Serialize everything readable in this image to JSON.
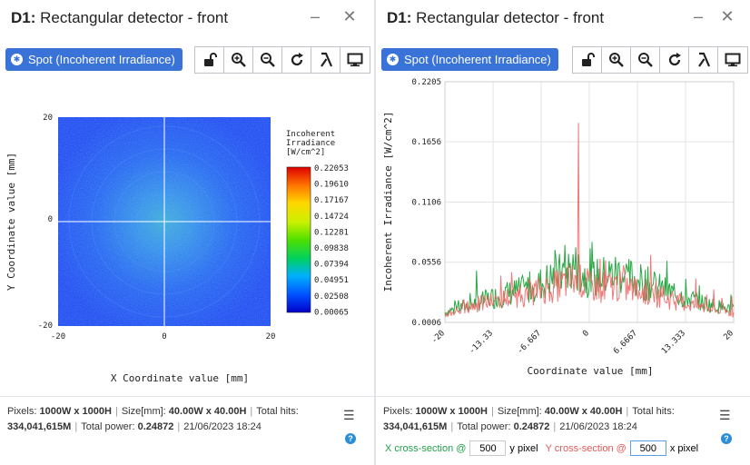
{
  "left": {
    "title_prefix": "D1:",
    "title": "Rectangular detector - front",
    "spot_button": "Spot (Incoherent Irradiance)",
    "colorbar": {
      "title_lines": [
        "Incoherent",
        "Irradiance",
        "[W/cm^2]"
      ],
      "ticks": [
        "0.22053",
        "0.19610",
        "0.17167",
        "0.14724",
        "0.12281",
        "0.09838",
        "0.07394",
        "0.04951",
        "0.02508",
        "0.00065"
      ]
    },
    "x_ticks": [
      "-20",
      "0",
      "20"
    ],
    "y_ticks": [
      "20",
      "0",
      "-20"
    ],
    "xlabel": "X Coordinate value [mm]",
    "ylabel": "Y Coordinate value [mm]"
  },
  "right": {
    "title_prefix": "D1:",
    "title": "Rectangular detector - front",
    "spot_button": "Spot (Incoherent Irradiance)",
    "cross_section": {
      "x_label": "X cross-section @",
      "x_value": "500",
      "x_unit": "y pixel",
      "y_label": "Y cross-section @",
      "y_value": "500",
      "y_unit": "x pixel"
    }
  },
  "footer": {
    "pixels_label": "Pixels:",
    "pixels_value": "1000W x 1000H",
    "size_label": "Size[mm]:",
    "size_value": "40.00W x 40.00H",
    "hits_label": "Total hits:",
    "hits_value": "334,041,615M",
    "power_label": "Total power:",
    "power_value": "0.24872",
    "timestamp": "21/06/2023 18:24"
  },
  "icons": {
    "spot": "asterisk-icon",
    "toolbar": [
      "unlock-icon",
      "zoom-in-icon",
      "zoom-out-icon",
      "refresh-icon",
      "lambda-icon",
      "monitor-icon"
    ],
    "close": "close-icon",
    "minimize": "minimize-icon",
    "menu": "hamburger-menu-icon",
    "help": "help-icon"
  },
  "chart_data": [
    {
      "type": "heatmap",
      "xlabel": "X Coordinate value [mm]",
      "ylabel": "Y Coordinate value [mm]",
      "xlim": [
        -20,
        20
      ],
      "ylim": [
        -20,
        20
      ],
      "x_ticks": [
        -20,
        0,
        20
      ],
      "y_ticks": [
        -20,
        0,
        20
      ],
      "colorbar_label": "Incoherent Irradiance [W/cm^2]",
      "colorbar_range": [
        0.00065,
        0.22053
      ]
    },
    {
      "type": "line",
      "xlabel": "Coordinate value [mm]",
      "ylabel": "Incoherent Irradiance [W/cm^2]",
      "xlim": [
        -20,
        20
      ],
      "ylim": [
        0.0006,
        0.2205
      ],
      "x_ticks": [
        "-20",
        "-13.33",
        "-6.667",
        "0",
        "6.6667",
        "13.333",
        "20"
      ],
      "y_ticks": [
        "0.0006",
        "0.0556",
        "0.1106",
        "0.1656",
        "0.2205"
      ],
      "grid": true,
      "series": [
        {
          "color": "#27a844",
          "x": [
            -20,
            -16,
            -12,
            -8,
            -4,
            -2,
            0,
            4,
            8,
            12,
            16,
            20
          ],
          "y": [
            0.01,
            0.018,
            0.026,
            0.032,
            0.045,
            0.052,
            0.04,
            0.046,
            0.036,
            0.026,
            0.018,
            0.012
          ]
        },
        {
          "color": "#f06060",
          "x": [
            -20,
            -16,
            -12,
            -8,
            -4,
            -2,
            -1.5,
            0,
            4,
            8,
            12,
            16,
            20
          ],
          "y": [
            0.008,
            0.016,
            0.022,
            0.028,
            0.035,
            0.04,
            0.183,
            0.033,
            0.034,
            0.028,
            0.02,
            0.014,
            0.009
          ]
        }
      ]
    }
  ]
}
